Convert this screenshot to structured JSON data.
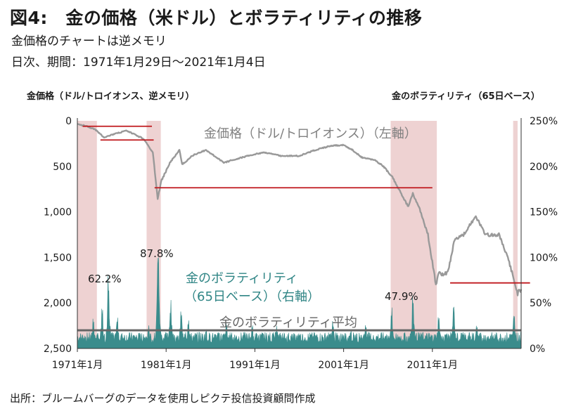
{
  "title": "図4:　金の価格（米ドル）とボラティリティの推移",
  "subtitle1": "金価格のチャートは逆メモリ",
  "subtitle2": "日次、期間：1971年1月29日～2021年1月4日",
  "source": "出所：ブルームバーグのデータを使用しピクテ投信投資顧問作成",
  "chart_data": {
    "type": "line",
    "y_left_label": "金価格（ドル/トロイオンス、逆メモリ）",
    "y_right_label": "金のボラティリティ（65日ベース）",
    "y_left_ticks": [
      "0",
      "500",
      "1,000",
      "1,500",
      "2,000",
      "2,500"
    ],
    "y_left_range": [
      0,
      2500
    ],
    "y_left_inverted": true,
    "y_right_ticks": [
      "250%",
      "200%",
      "150%",
      "100%",
      "50%",
      "0%"
    ],
    "y_right_range": [
      0,
      250
    ],
    "x_ticks": [
      "1971年1月",
      "1981年1月",
      "1991年1月",
      "2001年1月",
      "2011年1月"
    ],
    "x_range": [
      "1971-01",
      "2021-01"
    ],
    "annotations": {
      "gold_label": "金価格（ドル/トロイオンス）（左軸）",
      "vol_label_1": "金のボラティリティ",
      "vol_label_2": "（65日ベース）（右軸）",
      "avg_label": "金のボラティリティ平均",
      "peak1": "62.2%",
      "peak2": "87.8%",
      "peak3": "47.9%"
    },
    "colors": {
      "gold": "#999999",
      "vol": "#3a8c8c",
      "shade": "#eed2d2",
      "redline": "#c0191e",
      "avg": "#666666"
    },
    "series": [
      {
        "name": "金価格（ドル/トロイオンス）（左軸）",
        "axis": "left",
        "x": [
          1971.0,
          1972.0,
          1973.0,
          1974.0,
          1975.0,
          1976.5,
          1977.5,
          1978.5,
          1979.5,
          1980.05,
          1980.5,
          1981.5,
          1982.5,
          1982.8,
          1984.0,
          1985.5,
          1987.5,
          1988.5,
          1990.0,
          1992.0,
          1994.0,
          1996.0,
          1997.5,
          1999.5,
          2001.0,
          2002.0,
          2003.0,
          2004.5,
          2005.5,
          2006.5,
          2007.5,
          2008.3,
          2008.8,
          2009.5,
          2010.5,
          2011.4,
          2011.7,
          2012.3,
          2012.8,
          2013.5,
          2014.5,
          2015.9,
          2017.0,
          2018.5,
          2019.5,
          2020.6,
          2021.0
        ],
        "y": [
          38,
          55,
          95,
          180,
          150,
          110,
          150,
          200,
          350,
          850,
          650,
          450,
          320,
          480,
          380,
          320,
          460,
          430,
          390,
          345,
          385,
          385,
          330,
          275,
          265,
          320,
          400,
          430,
          500,
          620,
          800,
          950,
          800,
          950,
          1250,
          1800,
          1650,
          1700,
          1650,
          1300,
          1250,
          1050,
          1250,
          1250,
          1500,
          1900,
          1850
        ]
      },
      {
        "name": "金のボラティリティ（65日ベース）（右軸）",
        "axis": "right",
        "peaks": [
          {
            "x": 1972.8,
            "y": 25
          },
          {
            "x": 1973.8,
            "y": 33
          },
          {
            "x": 1974.5,
            "y": 62.2
          },
          {
            "x": 1975.5,
            "y": 28
          },
          {
            "x": 1977.0,
            "y": 10
          },
          {
            "x": 1979.0,
            "y": 20
          },
          {
            "x": 1980.1,
            "y": 87.8
          },
          {
            "x": 1981.5,
            "y": 38
          },
          {
            "x": 1982.7,
            "y": 32
          },
          {
            "x": 1983.5,
            "y": 25
          },
          {
            "x": 1985.5,
            "y": 16
          },
          {
            "x": 1987.8,
            "y": 22
          },
          {
            "x": 1990.7,
            "y": 19
          },
          {
            "x": 1993.5,
            "y": 18
          },
          {
            "x": 1996.0,
            "y": 12
          },
          {
            "x": 1999.8,
            "y": 24
          },
          {
            "x": 2001.8,
            "y": 17
          },
          {
            "x": 2003.5,
            "y": 20
          },
          {
            "x": 2006.4,
            "y": 32
          },
          {
            "x": 2008.8,
            "y": 47.9
          },
          {
            "x": 2011.7,
            "y": 28
          },
          {
            "x": 2013.4,
            "y": 33
          },
          {
            "x": 2016.0,
            "y": 18
          },
          {
            "x": 2020.2,
            "y": 30
          }
        ],
        "base_range": [
          6,
          18
        ]
      },
      {
        "name": "金のボラティリティ平均",
        "axis": "right",
        "value": 20
      }
    ],
    "shaded_periods": [
      [
        1971.0,
        1973.2
      ],
      [
        1978.8,
        1980.4
      ],
      [
        2006.3,
        2011.5
      ],
      [
        2020.1,
        2020.6
      ]
    ],
    "red_lines": [
      {
        "x0": 1971.6,
        "x1": 1979.4,
        "y": 60,
        "axis": "left"
      },
      {
        "x0": 1973.6,
        "x1": 1979.6,
        "y": 210,
        "axis": "left"
      },
      {
        "x0": 1979.7,
        "x1": 2011.0,
        "y": 735,
        "axis": "left"
      },
      {
        "x0": 2013.0,
        "x1": 2022.0,
        "y": 1780,
        "axis": "left"
      }
    ]
  }
}
